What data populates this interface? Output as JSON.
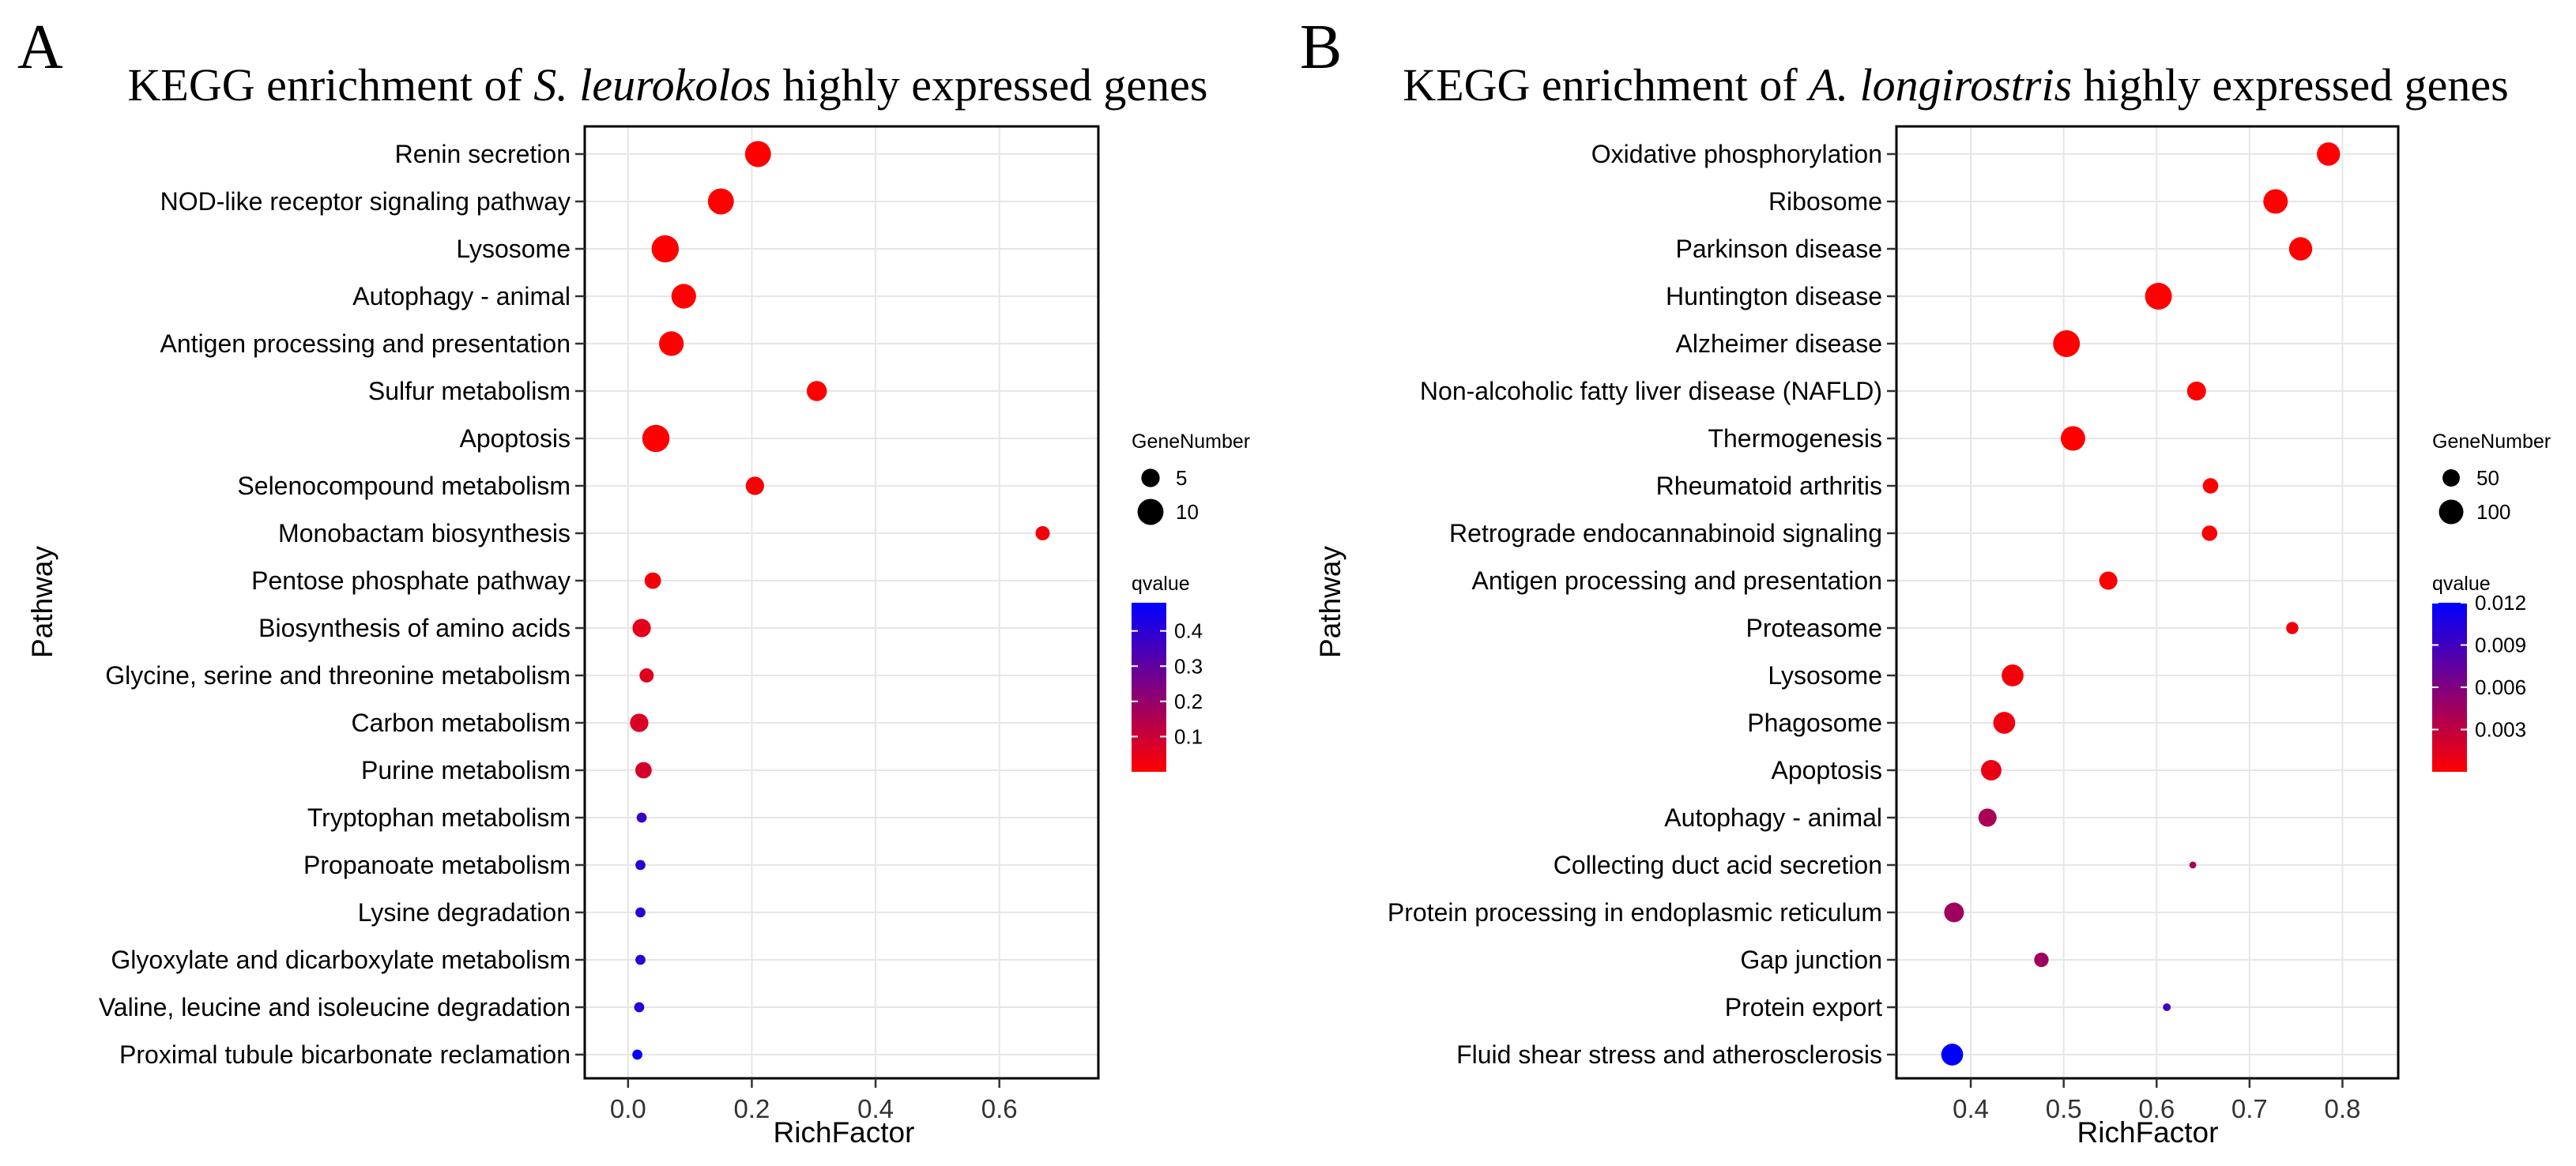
{
  "chart_data": [
    {
      "type": "scatter",
      "panel_letter": "A",
      "title_prefix": "KEGG enrichment of ",
      "title_species": "S. leurokolos",
      "title_suffix": " highly expressed genes",
      "xlabel": "RichFactor",
      "ylabel": "Pathway",
      "xlim": [
        -0.07,
        0.76
      ],
      "xticks": [
        0.0,
        0.2,
        0.4,
        0.6
      ],
      "xtick_labels": [
        "0.0",
        "0.2",
        "0.4",
        "0.6"
      ],
      "size_legend": {
        "title": "GeneNumber",
        "entries": [
          {
            "label": "5",
            "value": 5
          },
          {
            "label": "10",
            "value": 10
          }
        ]
      },
      "color_legend": {
        "title": "qvalue",
        "min": 0.0,
        "max": 0.48,
        "ticks": [
          0.1,
          0.2,
          0.3,
          0.4
        ],
        "tick_labels": [
          "0.1",
          "0.2",
          "0.3",
          "0.4"
        ],
        "low_color": "#ff0000",
        "high_color": "#0000ff"
      },
      "points": [
        {
          "pathway": "Renin secretion",
          "rich_factor": 0.21,
          "gene_number": 10,
          "qvalue": 0.0
        },
        {
          "pathway": "NOD-like receptor signaling pathway",
          "rich_factor": 0.15,
          "gene_number": 10,
          "qvalue": 0.0
        },
        {
          "pathway": "Lysosome",
          "rich_factor": 0.06,
          "gene_number": 11,
          "qvalue": 0.0
        },
        {
          "pathway": "Autophagy - animal",
          "rich_factor": 0.09,
          "gene_number": 9,
          "qvalue": 0.0
        },
        {
          "pathway": "Antigen processing and presentation",
          "rich_factor": 0.07,
          "gene_number": 9,
          "qvalue": 0.0
        },
        {
          "pathway": "Sulfur metabolism",
          "rich_factor": 0.305,
          "gene_number": 6,
          "qvalue": 0.0
        },
        {
          "pathway": "Apoptosis",
          "rich_factor": 0.045,
          "gene_number": 11,
          "qvalue": 0.0
        },
        {
          "pathway": "Selenocompound metabolism",
          "rich_factor": 0.205,
          "gene_number": 5,
          "qvalue": 0.01
        },
        {
          "pathway": "Monobactam biosynthesis",
          "rich_factor": 0.67,
          "gene_number": 3,
          "qvalue": 0.02
        },
        {
          "pathway": "Pentose phosphate pathway",
          "rich_factor": 0.04,
          "gene_number": 4,
          "qvalue": 0.02
        },
        {
          "pathway": "Biosynthesis of amino acids",
          "rich_factor": 0.022,
          "gene_number": 5,
          "qvalue": 0.05
        },
        {
          "pathway": "Glycine, serine and threonine metabolism",
          "rich_factor": 0.03,
          "gene_number": 3,
          "qvalue": 0.06
        },
        {
          "pathway": "Carbon metabolism",
          "rich_factor": 0.018,
          "gene_number": 5,
          "qvalue": 0.07
        },
        {
          "pathway": "Purine metabolism",
          "rich_factor": 0.025,
          "gene_number": 4,
          "qvalue": 0.08
        },
        {
          "pathway": "Tryptophan metabolism",
          "rich_factor": 0.022,
          "gene_number": 1.5,
          "qvalue": 0.38
        },
        {
          "pathway": "Propanoate metabolism",
          "rich_factor": 0.02,
          "gene_number": 1.5,
          "qvalue": 0.4
        },
        {
          "pathway": "Lysine degradation",
          "rich_factor": 0.02,
          "gene_number": 1.5,
          "qvalue": 0.4
        },
        {
          "pathway": "Glyoxylate and dicarboxylate metabolism",
          "rich_factor": 0.02,
          "gene_number": 1.5,
          "qvalue": 0.4
        },
        {
          "pathway": "Valine, leucine and isoleucine degradation",
          "rich_factor": 0.018,
          "gene_number": 1.5,
          "qvalue": 0.42
        },
        {
          "pathway": "Proximal tubule bicarbonate reclamation",
          "rich_factor": 0.015,
          "gene_number": 1.5,
          "qvalue": 0.47
        }
      ]
    },
    {
      "type": "scatter",
      "panel_letter": "B",
      "title_prefix": "KEGG enrichment of ",
      "title_species": "A. longirostris",
      "title_suffix": " highly expressed genes",
      "xlabel": "RichFactor",
      "ylabel": "Pathway",
      "xlim": [
        0.32,
        0.86
      ],
      "xticks": [
        0.4,
        0.5,
        0.6,
        0.7,
        0.8
      ],
      "xtick_labels": [
        "0.4",
        "0.5",
        "0.6",
        "0.7",
        "0.8"
      ],
      "size_legend": {
        "title": "GeneNumber",
        "entries": [
          {
            "label": "50",
            "value": 50
          },
          {
            "label": "100",
            "value": 100
          }
        ]
      },
      "color_legend": {
        "title": "qvalue",
        "min": 0.0,
        "max": 0.012,
        "ticks": [
          0.003,
          0.006,
          0.009,
          0.012
        ],
        "tick_labels": [
          "0.003",
          "0.006",
          "0.009",
          "0.012"
        ],
        "low_color": "#ff0000",
        "high_color": "#0000ff"
      },
      "points": [
        {
          "pathway": "Oxidative phosphorylation",
          "rich_factor": 0.785,
          "gene_number": 90,
          "qvalue": 0.0
        },
        {
          "pathway": "Ribosome",
          "rich_factor": 0.728,
          "gene_number": 100,
          "qvalue": 0.0
        },
        {
          "pathway": "Parkinson disease",
          "rich_factor": 0.755,
          "gene_number": 90,
          "qvalue": 0.0
        },
        {
          "pathway": "Huntington disease",
          "rich_factor": 0.602,
          "gene_number": 120,
          "qvalue": 0.0
        },
        {
          "pathway": "Alzheimer disease",
          "rich_factor": 0.503,
          "gene_number": 120,
          "qvalue": 0.0
        },
        {
          "pathway": "Non-alcoholic fatty liver disease (NAFLD)",
          "rich_factor": 0.643,
          "gene_number": 60,
          "qvalue": 0.0
        },
        {
          "pathway": "Thermogenesis",
          "rich_factor": 0.51,
          "gene_number": 100,
          "qvalue": 0.0
        },
        {
          "pathway": "Rheumatoid arthritis",
          "rich_factor": 0.658,
          "gene_number": 40,
          "qvalue": 0.0
        },
        {
          "pathway": "Retrograde endocannabinoid signaling",
          "rich_factor": 0.657,
          "gene_number": 40,
          "qvalue": 0.0
        },
        {
          "pathway": "Antigen processing and presentation",
          "rich_factor": 0.548,
          "gene_number": 55,
          "qvalue": 0.0
        },
        {
          "pathway": "Proteasome",
          "rich_factor": 0.746,
          "gene_number": 25,
          "qvalue": 0.0005
        },
        {
          "pathway": "Lysosome",
          "rich_factor": 0.445,
          "gene_number": 80,
          "qvalue": 0.0005
        },
        {
          "pathway": "Phagosome",
          "rich_factor": 0.436,
          "gene_number": 80,
          "qvalue": 0.0008
        },
        {
          "pathway": "Apoptosis",
          "rich_factor": 0.422,
          "gene_number": 70,
          "qvalue": 0.001
        },
        {
          "pathway": "Autophagy - animal",
          "rich_factor": 0.418,
          "gene_number": 55,
          "qvalue": 0.004
        },
        {
          "pathway": "Collecting duct acid secretion",
          "rich_factor": 0.639,
          "gene_number": 8,
          "qvalue": 0.004
        },
        {
          "pathway": "Protein processing in endoplasmic reticulum",
          "rich_factor": 0.382,
          "gene_number": 65,
          "qvalue": 0.0045
        },
        {
          "pathway": "Gap junction",
          "rich_factor": 0.476,
          "gene_number": 35,
          "qvalue": 0.0045
        },
        {
          "pathway": "Protein export",
          "rich_factor": 0.611,
          "gene_number": 10,
          "qvalue": 0.009
        },
        {
          "pathway": "Fluid shear stress and atherosclerosis",
          "rich_factor": 0.38,
          "gene_number": 80,
          "qvalue": 0.012
        }
      ]
    }
  ]
}
